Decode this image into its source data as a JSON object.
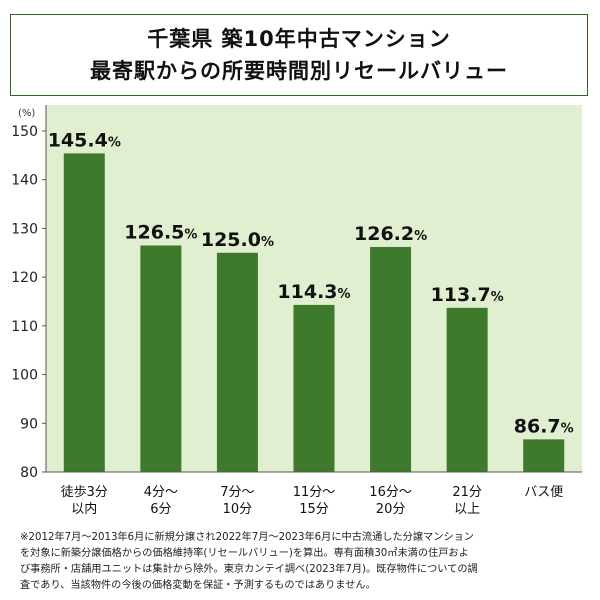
{
  "title": {
    "line1": "千葉県 築10年中古マンション",
    "line2": "最寄駅からの所要時間別リセールバリュー"
  },
  "chart_data": {
    "type": "bar",
    "title": "千葉県 築10年中古マンション 最寄駅からの所要時間別リセールバリュー",
    "unit_label": "(%)",
    "categories": [
      [
        "徒歩3分",
        "以内"
      ],
      [
        "4分～",
        "6分"
      ],
      [
        "7分～",
        "10分"
      ],
      [
        "11分～",
        "15分"
      ],
      [
        "16分～",
        "20分"
      ],
      [
        "21分",
        "以上"
      ],
      [
        "バス便"
      ]
    ],
    "values": [
      145.4,
      126.5,
      125.0,
      114.3,
      126.2,
      113.7,
      86.7
    ],
    "value_labels": [
      "145.4",
      "126.5",
      "125.0",
      "114.3",
      "126.2",
      "113.7",
      "86.7"
    ],
    "value_suffix": "%",
    "ylim": [
      80,
      150
    ],
    "yticks": [
      "80",
      "90",
      "100",
      "110",
      "120",
      "130",
      "140",
      "150"
    ],
    "grid": false,
    "colors": {
      "bar": "#3d7a2c",
      "plot_background": "#e0efcf",
      "title_border": "#2c6a1f"
    }
  },
  "note": [
    "※2012年7月～2013年6月に新規分譲され2022年7月～2023年6月に中古流通した分譲マンション",
    "を対象に新築分譲価格からの価格維持率(リセールバリュー)を算出。専有面積30㎡未満の住戸およ",
    "び事務所・店舗用ユニットは集計から除外。東京カンテイ調べ(2023年7月)。既存物件についての調",
    "査であり、当該物件の今後の価格変動を保証・予測するものではありません。"
  ]
}
